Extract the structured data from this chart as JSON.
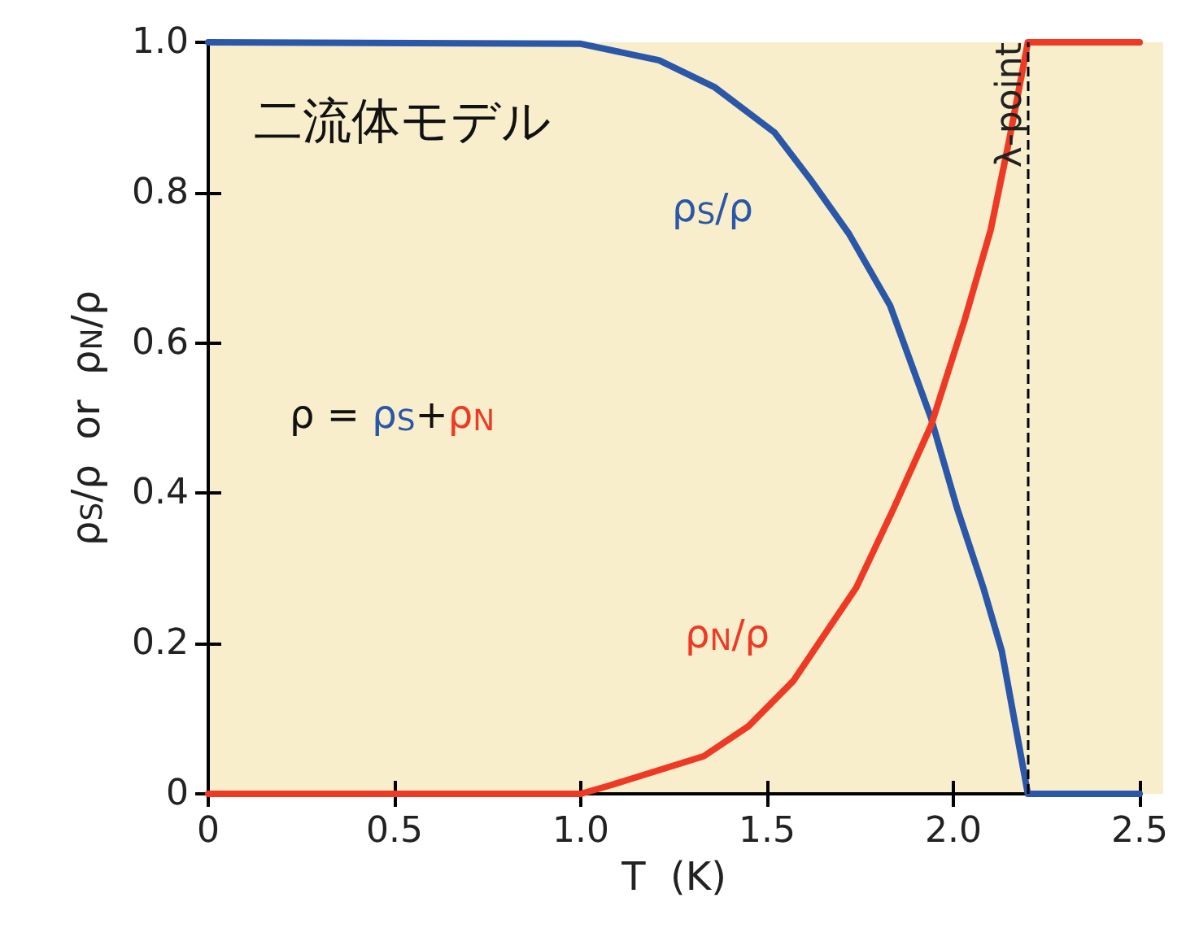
{
  "chart_data": {
    "type": "line",
    "xlabel": "T  (K)",
    "ylabel": "ρ$_{S}$/ρ  or  ρ$_{N}$/ρ",
    "xlim": [
      0,
      2.5
    ],
    "xticks": [
      0,
      0.5,
      {
        "value": 1,
        "label": "1.0"
      },
      1.5,
      {
        "value": 2,
        "label": "2.0"
      },
      2.5
    ],
    "ylim": [
      0,
      1
    ],
    "yticks": [
      0,
      0.2,
      0.4,
      0.6,
      0.8,
      {
        "value": 1,
        "label": "1.0"
      }
    ],
    "grid": false,
    "legend": false,
    "marker": "none",
    "line_style": "solid",
    "series": [
      {
        "name": "ρ$_{S}$/ρ",
        "color": "#2b57a8",
        "x": [
          0,
          1.0,
          1.21,
          1.36,
          1.52,
          1.62,
          1.72,
          1.83,
          1.94,
          2.01,
          2.08,
          2.13,
          2.2,
          2.5
        ],
        "values": [
          1,
          0.998,
          0.976,
          0.94,
          0.88,
          0.815,
          0.745,
          0.65,
          0.5,
          0.38,
          0.275,
          0.19,
          0,
          0
        ]
      },
      {
        "name": "ρ$_{N}$/ρ",
        "color": "#ee3a24",
        "x": [
          0,
          1.0,
          1.07,
          1.33,
          1.45,
          1.57,
          1.74,
          1.84,
          1.94,
          2.03,
          2.1,
          2.15,
          2.2,
          2.5
        ],
        "values": [
          0,
          0,
          0.01,
          0.05,
          0.09,
          0.15,
          0.275,
          0.38,
          0.49,
          0.63,
          0.75,
          0.87,
          1,
          1
        ]
      }
    ],
    "ref_lines": [
      {
        "axis": "x",
        "value": 2.2,
        "label": "λ-point",
        "color": "#000000",
        "line_style": "dashed"
      }
    ],
    "annotations": [
      "二流体モデル",
      "ρ = ρ$_{S}$+ρ$_{N}$"
    ]
  }
}
